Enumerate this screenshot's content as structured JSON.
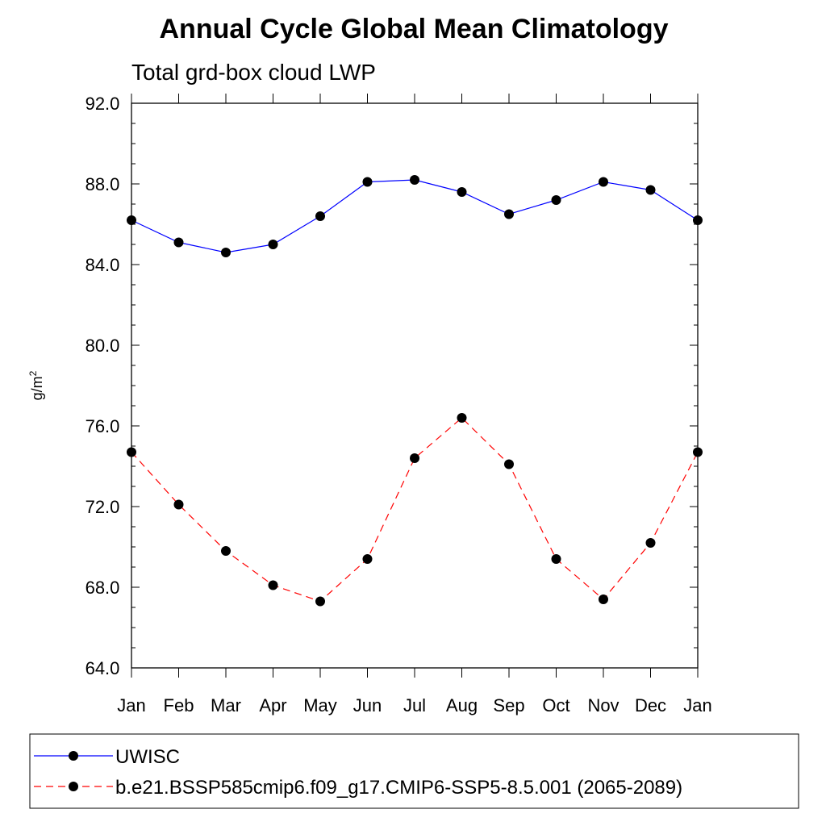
{
  "chart_data": {
    "type": "line",
    "title": "Annual Cycle Global Mean Climatology",
    "subtitle": "Total grd-box cloud LWP",
    "ylabel": "g/m",
    "ylabel_sup": "2",
    "ylim": [
      64.0,
      92.0
    ],
    "yticks": [
      "64.0",
      "68.0",
      "72.0",
      "76.0",
      "80.0",
      "84.0",
      "88.0",
      "92.0"
    ],
    "categories": [
      "Jan",
      "Feb",
      "Mar",
      "Apr",
      "May",
      "Jun",
      "Jul",
      "Aug",
      "Sep",
      "Oct",
      "Nov",
      "Dec",
      "Jan"
    ],
    "grid": false,
    "legend_position": "bottom",
    "series": [
      {
        "name": "UWISC",
        "color": "#0000ff",
        "dashed": false,
        "values": [
          86.2,
          85.1,
          84.6,
          85.0,
          86.4,
          88.1,
          88.2,
          87.6,
          86.5,
          87.2,
          88.1,
          87.7,
          86.2
        ]
      },
      {
        "name": "b.e21.BSSP585cmip6.f09_g17.CMIP6-SSP5-8.5.001 (2065-2089)",
        "color": "#ff0000",
        "dashed": true,
        "values": [
          74.7,
          72.1,
          69.8,
          68.1,
          67.3,
          69.4,
          74.4,
          76.4,
          74.1,
          69.4,
          67.4,
          70.2,
          74.7
        ]
      }
    ]
  }
}
